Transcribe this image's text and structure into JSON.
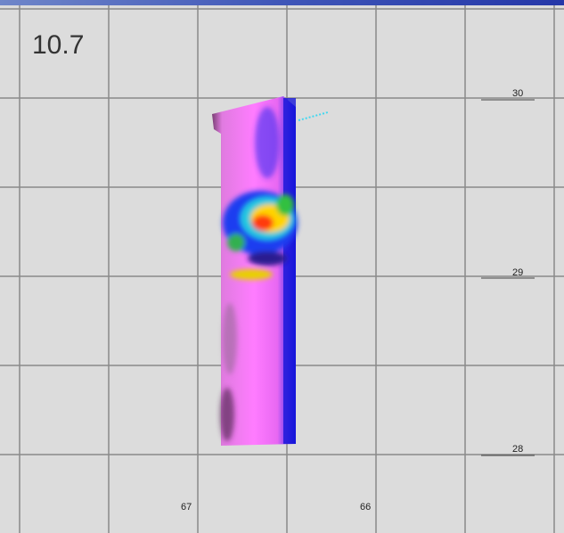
{
  "frame_label": "10.7",
  "latitude_labels": [
    "30",
    "29",
    "28"
  ],
  "longitude_labels": [
    "67",
    "66"
  ]
}
